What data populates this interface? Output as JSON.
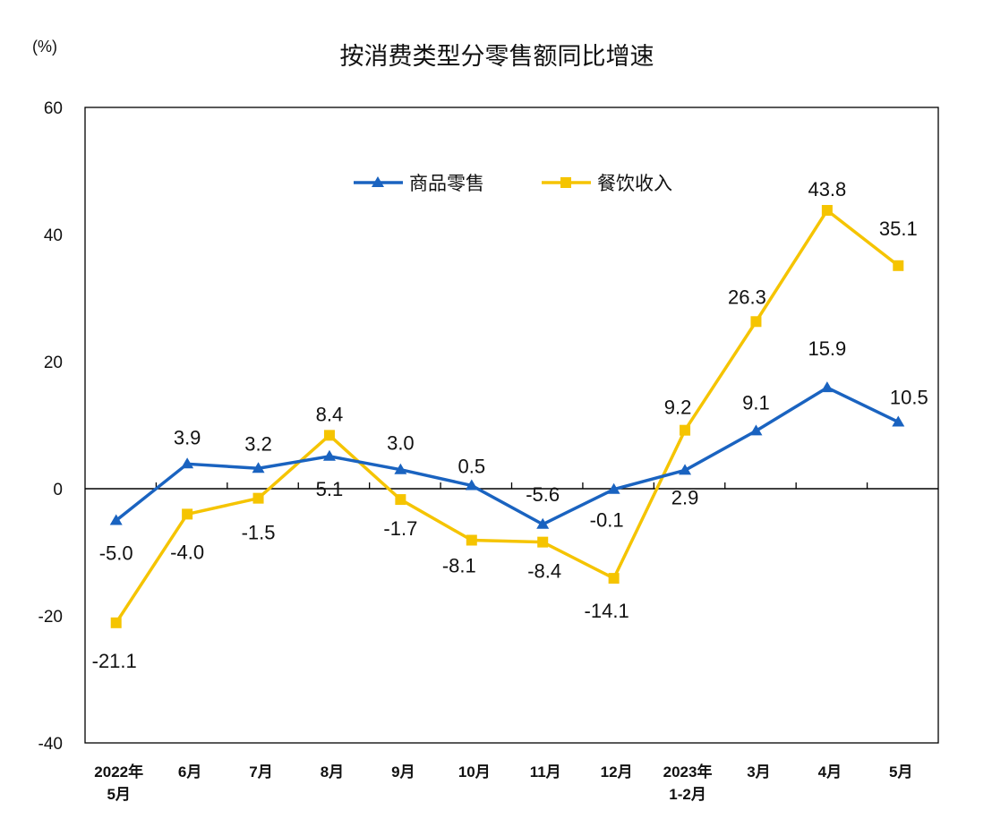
{
  "chart_data": {
    "type": "line",
    "title": "按消费类型分零售额同比增速",
    "ylabel": "(%)",
    "xlabel": "",
    "ylim": [
      -40,
      60
    ],
    "yticks": [
      -40,
      -20,
      0,
      20,
      40,
      60
    ],
    "grid": false,
    "legend_position": "top-center",
    "categories": [
      [
        "2022年",
        "5月"
      ],
      [
        "6月"
      ],
      [
        "7月"
      ],
      [
        "8月"
      ],
      [
        "9月"
      ],
      [
        "10月"
      ],
      [
        "11月"
      ],
      [
        "12月"
      ],
      [
        "2023年",
        "1-2月"
      ],
      [
        "3月"
      ],
      [
        "4月"
      ],
      [
        "5月"
      ]
    ],
    "series": [
      {
        "name": "商品零售",
        "color": "#1a63c0",
        "marker": "triangle",
        "values": [
          -5.0,
          3.9,
          3.2,
          5.1,
          3.0,
          0.5,
          -5.6,
          -0.1,
          2.9,
          9.1,
          15.9,
          10.5
        ],
        "labels": [
          "-5.0",
          "3.9",
          "3.2",
          "5.1",
          "3.0",
          "0.5",
          "-5.6",
          "-0.1",
          "2.9",
          "9.1",
          "15.9",
          "10.5"
        ]
      },
      {
        "name": "餐饮收入",
        "color": "#f5c400",
        "marker": "square",
        "values": [
          -21.1,
          -4.0,
          -1.5,
          8.4,
          -1.7,
          -8.1,
          -8.4,
          -14.1,
          9.2,
          26.3,
          43.8,
          35.1
        ],
        "labels": [
          "-21.1",
          "-4.0",
          "-1.5",
          "8.4",
          "-1.7",
          "-8.1",
          "-8.4",
          "-14.1",
          "9.2",
          "26.3",
          "43.8",
          "35.1"
        ]
      }
    ]
  }
}
